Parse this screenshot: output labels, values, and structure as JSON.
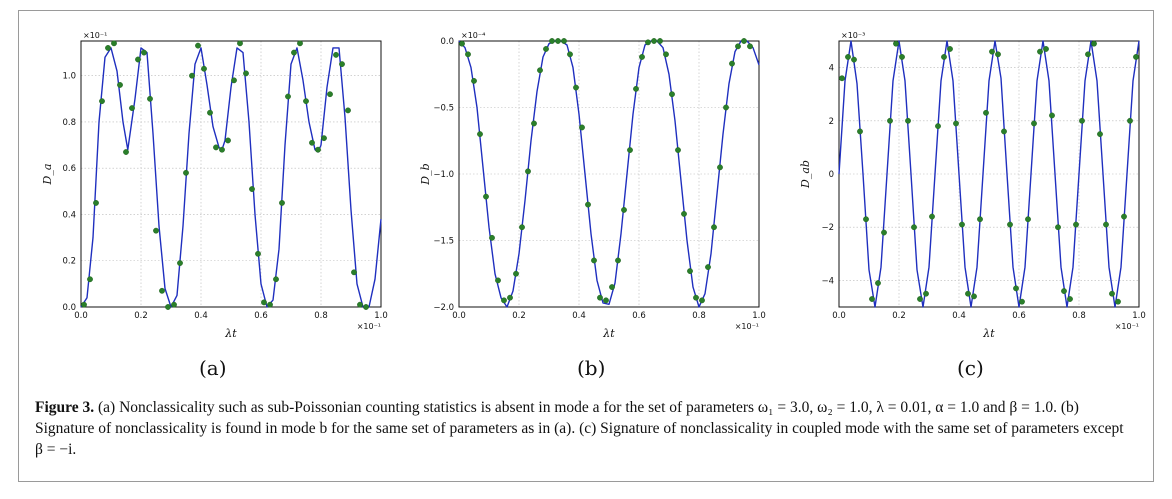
{
  "chart_data": [
    {
      "panel": "a",
      "type": "line",
      "ylabel": "D_a",
      "xlabel": "λt",
      "x_exponent": "×10⁻¹",
      "y_exponent": "×10⁻¹",
      "xlim": [
        0,
        1.0
      ],
      "ylim": [
        0,
        1.15
      ],
      "xticks": [
        "0.0",
        "0.2",
        "0.4",
        "0.6",
        "0.8",
        "1.0"
      ],
      "yticks": [
        "0.0",
        "0.2",
        "0.4",
        "0.6",
        "0.8",
        "1.0"
      ],
      "grid": true,
      "series": [
        {
          "kind": "line",
          "color": "#1f2fbf",
          "x": [
            0,
            0.02,
            0.04,
            0.06,
            0.08,
            0.1,
            0.12,
            0.14,
            0.156,
            0.18,
            0.2,
            0.22,
            0.24,
            0.26,
            0.28,
            0.3,
            0.32,
            0.34,
            0.36,
            0.38,
            0.4,
            0.42,
            0.44,
            0.46,
            0.47,
            0.48,
            0.5,
            0.52,
            0.54,
            0.56,
            0.58,
            0.6,
            0.62,
            0.64,
            0.66,
            0.68,
            0.7,
            0.72,
            0.74,
            0.76,
            0.78,
            0.79,
            0.8,
            0.82,
            0.84,
            0.86,
            0.88,
            0.9,
            0.92,
            0.94,
            0.96,
            0.98,
            1.0
          ],
          "y": [
            0,
            0.04,
            0.3,
            0.8,
            1.08,
            1.12,
            1.02,
            0.8,
            0.68,
            0.9,
            1.12,
            1.1,
            0.75,
            0.35,
            0.08,
            0,
            0.05,
            0.35,
            0.75,
            1.05,
            1.12,
            0.96,
            0.78,
            0.69,
            0.68,
            0.72,
            0.95,
            1.12,
            1.1,
            0.8,
            0.4,
            0.1,
            0,
            0.03,
            0.25,
            0.7,
            1.05,
            1.12,
            0.98,
            0.8,
            0.68,
            0.67,
            0.7,
            0.95,
            1.12,
            1.12,
            0.82,
            0.42,
            0.1,
            0,
            0,
            0.12,
            0.38
          ]
        },
        {
          "kind": "markers",
          "color": "#2a7f2a",
          "x": [
            0.01,
            0.03,
            0.05,
            0.07,
            0.09,
            0.11,
            0.13,
            0.15,
            0.17,
            0.19,
            0.21,
            0.23,
            0.25,
            0.27,
            0.29,
            0.31,
            0.33,
            0.35,
            0.37,
            0.39,
            0.41,
            0.43,
            0.45,
            0.47,
            0.49,
            0.51,
            0.53,
            0.55,
            0.57,
            0.59,
            0.61,
            0.63,
            0.65,
            0.67,
            0.69,
            0.71,
            0.73,
            0.75,
            0.77,
            0.79,
            0.81,
            0.83,
            0.85,
            0.87,
            0.89,
            0.91,
            0.93,
            0.95
          ],
          "y": [
            0.01,
            0.12,
            0.45,
            0.89,
            1.12,
            1.14,
            0.96,
            0.67,
            0.86,
            1.07,
            1.1,
            0.9,
            0.33,
            0.07,
            0,
            0.01,
            0.19,
            0.58,
            1.0,
            1.13,
            1.03,
            0.84,
            0.69,
            0.68,
            0.72,
            0.98,
            1.14,
            1.01,
            0.51,
            0.23,
            0.02,
            0.01,
            0.12,
            0.45,
            0.91,
            1.1,
            1.14,
            0.89,
            0.71,
            0.68,
            0.73,
            0.92,
            1.09,
            1.05,
            0.85,
            0.15,
            0.01,
            0
          ]
        }
      ]
    },
    {
      "panel": "b",
      "type": "line",
      "ylabel": "D_b",
      "xlabel": "λt",
      "x_exponent": "×10⁻¹",
      "y_exponent": "×10⁻⁴",
      "xlim": [
        0,
        1.0
      ],
      "ylim": [
        -2.0,
        0
      ],
      "xticks": [
        "0.0",
        "0.2",
        "0.4",
        "0.6",
        "0.8",
        "1.0"
      ],
      "yticks": [
        "0.0",
        "−0.5",
        "−1.0",
        "−1.5",
        "−2.0"
      ],
      "grid": true,
      "series": [
        {
          "kind": "line",
          "color": "#1f2fbf",
          "x": [
            0,
            0.02,
            0.04,
            0.06,
            0.08,
            0.1,
            0.12,
            0.14,
            0.16,
            0.18,
            0.2,
            0.22,
            0.24,
            0.26,
            0.28,
            0.3,
            0.32,
            0.34,
            0.36,
            0.38,
            0.4,
            0.42,
            0.44,
            0.46,
            0.48,
            0.5,
            0.52,
            0.54,
            0.56,
            0.58,
            0.6,
            0.62,
            0.64,
            0.66,
            0.68,
            0.7,
            0.72,
            0.74,
            0.76,
            0.78,
            0.8,
            0.82,
            0.84,
            0.86,
            0.88,
            0.9,
            0.92,
            0.94,
            0.96,
            0.98,
            1.0
          ],
          "y": [
            0,
            -0.05,
            -0.2,
            -0.5,
            -0.95,
            -1.4,
            -1.75,
            -1.93,
            -2.0,
            -1.88,
            -1.6,
            -1.2,
            -0.75,
            -0.38,
            -0.12,
            -0.02,
            0,
            0,
            -0.03,
            -0.2,
            -0.55,
            -1.0,
            -1.45,
            -1.8,
            -1.97,
            -1.98,
            -1.82,
            -1.45,
            -1.0,
            -0.55,
            -0.2,
            -0.03,
            0,
            0,
            -0.05,
            -0.25,
            -0.6,
            -1.05,
            -1.5,
            -1.85,
            -2.0,
            -1.9,
            -1.6,
            -1.15,
            -0.7,
            -0.32,
            -0.08,
            0,
            0,
            -0.05,
            -0.18
          ]
        },
        {
          "kind": "markers",
          "color": "#2a7f2a",
          "x": [
            0.01,
            0.03,
            0.05,
            0.07,
            0.09,
            0.11,
            0.13,
            0.15,
            0.17,
            0.19,
            0.21,
            0.23,
            0.25,
            0.27,
            0.29,
            0.31,
            0.33,
            0.35,
            0.37,
            0.39,
            0.41,
            0.43,
            0.45,
            0.47,
            0.49,
            0.51,
            0.53,
            0.55,
            0.57,
            0.59,
            0.61,
            0.63,
            0.65,
            0.67,
            0.69,
            0.71,
            0.73,
            0.75,
            0.77,
            0.79,
            0.81,
            0.83,
            0.85,
            0.87,
            0.89,
            0.91,
            0.93,
            0.95,
            0.97
          ],
          "y": [
            -0.02,
            -0.1,
            -0.3,
            -0.7,
            -1.17,
            -1.48,
            -1.8,
            -1.95,
            -1.93,
            -1.75,
            -1.4,
            -0.98,
            -0.62,
            -0.22,
            -0.06,
            0,
            0,
            0,
            -0.1,
            -0.35,
            -0.65,
            -1.23,
            -1.65,
            -1.93,
            -1.95,
            -1.85,
            -1.65,
            -1.27,
            -0.82,
            -0.36,
            -0.12,
            -0.01,
            0,
            0,
            -0.1,
            -0.4,
            -0.82,
            -1.3,
            -1.73,
            -1.93,
            -1.95,
            -1.7,
            -1.4,
            -0.95,
            -0.5,
            -0.17,
            -0.04,
            0,
            -0.04
          ]
        }
      ]
    },
    {
      "panel": "c",
      "type": "line",
      "ylabel": "D_ab",
      "xlabel": "λt",
      "x_exponent": "×10⁻¹",
      "y_exponent": "×10⁻³",
      "xlim": [
        0,
        1.0
      ],
      "ylim": [
        -5,
        5
      ],
      "xticks": [
        "0.0",
        "0.2",
        "0.4",
        "0.6",
        "0.8",
        "1.0"
      ],
      "yticks": [
        "4",
        "2",
        "0",
        "−2",
        "−4"
      ],
      "grid": true,
      "series": [
        {
          "kind": "line",
          "color": "#1f2fbf",
          "x": [
            0,
            0.02,
            0.04,
            0.06,
            0.08,
            0.1,
            0.12,
            0.14,
            0.16,
            0.18,
            0.2,
            0.22,
            0.24,
            0.26,
            0.28,
            0.3,
            0.32,
            0.34,
            0.36,
            0.38,
            0.4,
            0.42,
            0.44,
            0.46,
            0.48,
            0.5,
            0.52,
            0.54,
            0.56,
            0.58,
            0.6,
            0.62,
            0.64,
            0.66,
            0.68,
            0.7,
            0.72,
            0.74,
            0.76,
            0.78,
            0.8,
            0.82,
            0.84,
            0.86,
            0.88,
            0.9,
            0.92,
            0.94,
            0.96,
            0.98,
            1.0
          ],
          "y": [
            0,
            3.5,
            5,
            3.4,
            0,
            -3.6,
            -5,
            -3.5,
            0,
            3.5,
            5,
            3.5,
            0,
            -3.6,
            -5,
            -3.5,
            0,
            3.5,
            5,
            3.5,
            0,
            -3.5,
            -5,
            -3.5,
            0,
            3.5,
            5,
            3.6,
            0,
            -3.5,
            -5,
            -3.5,
            0,
            3.5,
            5,
            3.5,
            0,
            -3.5,
            -5,
            -3.5,
            0,
            3.5,
            5,
            3.5,
            0,
            -3.5,
            -5,
            -3.5,
            0,
            3.5,
            5
          ]
        },
        {
          "kind": "markers",
          "color": "#2a7f2a",
          "x": [
            0.01,
            0.03,
            0.05,
            0.07,
            0.09,
            0.11,
            0.13,
            0.15,
            0.17,
            0.19,
            0.21,
            0.23,
            0.25,
            0.27,
            0.29,
            0.31,
            0.33,
            0.35,
            0.37,
            0.39,
            0.41,
            0.43,
            0.45,
            0.47,
            0.49,
            0.51,
            0.53,
            0.55,
            0.57,
            0.59,
            0.61,
            0.63,
            0.65,
            0.67,
            0.69,
            0.71,
            0.73,
            0.75,
            0.77,
            0.79,
            0.81,
            0.83,
            0.85,
            0.87,
            0.89,
            0.91,
            0.93,
            0.95,
            0.97,
            0.99
          ],
          "y": [
            3.6,
            4.4,
            4.3,
            1.6,
            -1.7,
            -4.7,
            -4.1,
            -2.2,
            2.0,
            4.9,
            4.4,
            2.0,
            -2.0,
            -4.7,
            -4.5,
            -1.6,
            1.8,
            4.4,
            4.7,
            1.9,
            -1.9,
            -4.5,
            -4.6,
            -1.7,
            2.3,
            4.6,
            4.5,
            1.6,
            -1.9,
            -4.3,
            -4.8,
            -1.7,
            1.9,
            4.6,
            4.7,
            2.2,
            -2.0,
            -4.4,
            -4.7,
            -1.9,
            2.0,
            4.5,
            4.9,
            1.5,
            -1.9,
            -4.5,
            -4.8,
            -1.6,
            2.0,
            4.4
          ]
        }
      ]
    }
  ],
  "sublabels": [
    "(a)",
    "(b)",
    "(c)"
  ],
  "caption": {
    "label": "Figure 3.",
    "text": " (a) Nonclassicality such as sub-Poissonian counting statistics is absent in mode a for the set of parameters ω₁ = 3.0, ω₂ = 1.0, λ = 0.01, α = 1.0 and β = 1.0. (b) Signature of nonclassicality is found in mode b for the same set of parameters as in (a). (c) Signature of nonclassicality in coupled mode with the same set of parameters except β = −i."
  }
}
